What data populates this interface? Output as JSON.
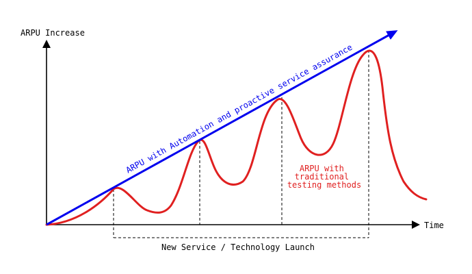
{
  "axes": {
    "y_label": "ARPU Increase",
    "x_label": "Time"
  },
  "automation_line": {
    "label": "ARPU with Automation and proactive service assurance",
    "color": "#0000ee"
  },
  "traditional_curve": {
    "label_lines": [
      "ARPU with",
      "traditional",
      "testing methods"
    ],
    "color": "#e02020"
  },
  "launch_bracket": {
    "label": "New Service / Technology Launch",
    "launch_count": 4
  },
  "colors": {
    "axis": "#000000",
    "guide": "#000000"
  }
}
